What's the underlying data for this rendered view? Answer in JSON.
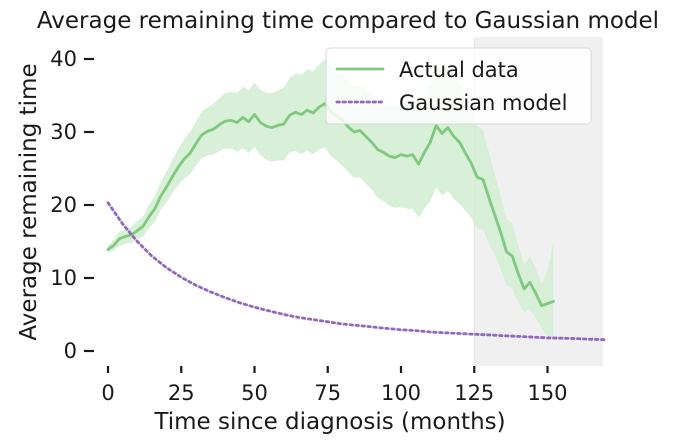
{
  "chart_data": {
    "type": "line",
    "title": "Average remaining time compared to Gaussian model",
    "xlabel": "Time since diagnosis (months)",
    "ylabel": "Average remaining time",
    "xlim": [
      -5,
      170
    ],
    "ylim": [
      -2,
      41
    ],
    "xticks": [
      0,
      25,
      50,
      75,
      100,
      125,
      150
    ],
    "yticks": [
      0,
      10,
      20,
      30,
      40
    ],
    "grid": false,
    "legend_position": "top-right",
    "shaded_region": {
      "x_start": 125,
      "x_end": 170,
      "color": "#f0f0f0"
    },
    "series": [
      {
        "name": "Actual data",
        "style": "solid",
        "color": "#7fc97f",
        "band_color": "#d4edd4",
        "x": [
          0,
          2,
          4,
          6,
          8,
          10,
          12,
          14,
          16,
          18,
          20,
          22,
          24,
          26,
          28,
          30,
          32,
          34,
          36,
          38,
          40,
          42,
          44,
          46,
          48,
          50,
          52,
          54,
          56,
          58,
          60,
          62,
          64,
          66,
          68,
          70,
          72,
          74,
          76,
          78,
          80,
          82,
          84,
          86,
          88,
          90,
          92,
          94,
          96,
          98,
          100,
          102,
          104,
          106,
          108,
          110,
          112,
          114,
          116,
          118,
          120,
          122,
          124,
          126,
          128,
          130,
          132,
          134,
          136,
          138,
          140,
          142,
          144,
          146,
          148,
          150,
          152
        ],
        "y": [
          13.9,
          14.5,
          15.4,
          15.7,
          15.9,
          16.5,
          17.1,
          18.4,
          19.5,
          21.2,
          22.5,
          23.9,
          25.2,
          26.3,
          27.1,
          28.4,
          29.6,
          30.1,
          30.4,
          31.0,
          31.5,
          31.6,
          31.3,
          32.0,
          31.4,
          32.4,
          31.3,
          30.8,
          30.6,
          30.9,
          31.1,
          32.3,
          32.7,
          32.4,
          33.0,
          32.6,
          33.4,
          33.9,
          32.8,
          32.2,
          31.6,
          30.7,
          30.0,
          30.2,
          29.4,
          28.6,
          27.6,
          27.2,
          26.7,
          26.5,
          26.9,
          26.7,
          26.9,
          25.6,
          27.2,
          28.6,
          30.9,
          29.8,
          30.6,
          29.4,
          28.6,
          27.1,
          25.7,
          23.8,
          23.5,
          21.0,
          18.6,
          16.3,
          13.6,
          13.0,
          10.6,
          8.5,
          9.4,
          7.9,
          6.2,
          6.5,
          6.8
        ],
        "lower": [
          13.4,
          13.8,
          14.4,
          14.7,
          14.8,
          15.2,
          15.7,
          16.8,
          17.7,
          19.3,
          20.4,
          21.6,
          22.7,
          23.6,
          24.2,
          25.4,
          26.4,
          26.8,
          26.9,
          27.4,
          27.7,
          27.7,
          27.3,
          27.8,
          27.1,
          28.0,
          26.8,
          26.2,
          25.9,
          26.1,
          26.1,
          27.2,
          27.4,
          27.0,
          27.4,
          26.9,
          27.6,
          27.9,
          26.7,
          26.1,
          25.4,
          24.5,
          23.7,
          23.8,
          22.9,
          22.1,
          21.0,
          20.5,
          19.9,
          19.6,
          19.8,
          19.5,
          19.5,
          18.2,
          19.5,
          20.5,
          22.4,
          21.3,
          21.9,
          20.8,
          20.1,
          19.2,
          18.2,
          16.8,
          16.7,
          14.8,
          13.1,
          11.3,
          9.1,
          8.5,
          6.8,
          5.2,
          5.8,
          4.5,
          3.2,
          2.1,
          1.6
        ],
        "upper": [
          14.4,
          15.2,
          16.4,
          16.7,
          17.0,
          17.8,
          18.5,
          20.0,
          21.3,
          23.1,
          24.6,
          26.2,
          27.7,
          29.0,
          30.0,
          31.4,
          32.8,
          33.4,
          33.9,
          34.6,
          35.3,
          35.5,
          35.3,
          36.2,
          35.7,
          36.8,
          35.8,
          35.4,
          35.3,
          35.7,
          36.1,
          37.4,
          38.0,
          37.8,
          38.6,
          38.3,
          39.2,
          39.9,
          38.9,
          38.3,
          37.8,
          36.9,
          36.3,
          36.6,
          35.9,
          35.1,
          34.2,
          33.9,
          33.5,
          33.4,
          34.0,
          33.9,
          34.3,
          33.0,
          34.9,
          36.7,
          39.4,
          38.3,
          39.3,
          38.0,
          37.1,
          35.0,
          33.2,
          30.8,
          30.3,
          27.2,
          24.1,
          21.3,
          18.1,
          17.5,
          14.4,
          11.8,
          13.0,
          11.3,
          9.2,
          10.9,
          15.1
        ]
      },
      {
        "name": "Gaussian model",
        "style": "dotted",
        "color": "#9467bd",
        "x": [
          0,
          5,
          10,
          15,
          20,
          25,
          30,
          35,
          40,
          45,
          50,
          55,
          60,
          65,
          70,
          75,
          80,
          85,
          90,
          95,
          100,
          105,
          110,
          115,
          120,
          125,
          130,
          135,
          140,
          145,
          150,
          155,
          160,
          165,
          170
        ],
        "y": [
          20.3,
          17.4,
          15.0,
          13.0,
          11.4,
          10.1,
          9.0,
          8.1,
          7.3,
          6.6,
          6.0,
          5.5,
          5.0,
          4.6,
          4.3,
          4.0,
          3.7,
          3.5,
          3.3,
          3.1,
          2.9,
          2.8,
          2.6,
          2.5,
          2.4,
          2.3,
          2.2,
          2.1,
          2.0,
          1.9,
          1.8,
          1.75,
          1.7,
          1.6,
          1.55
        ]
      }
    ]
  }
}
